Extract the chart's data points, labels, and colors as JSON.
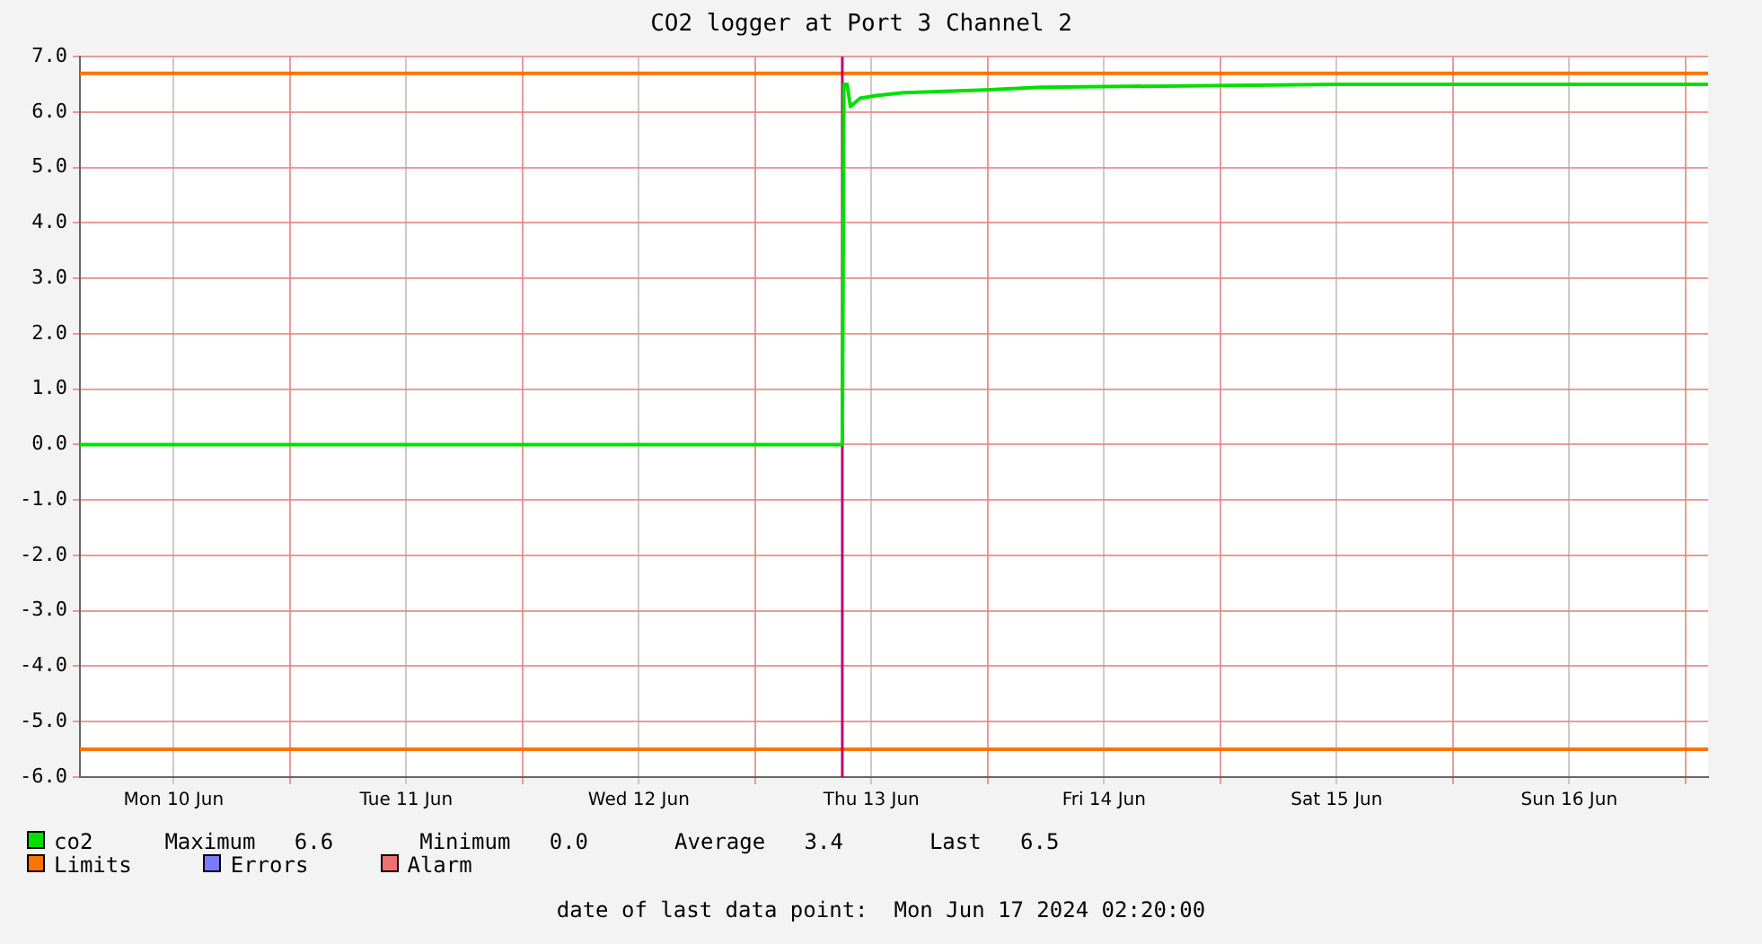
{
  "chart_data": {
    "type": "line",
    "title": "CO2 logger at Port 3 Channel 2",
    "xlim": [
      "2024-06-10T02:20",
      "2024-06-17T02:20"
    ],
    "xticks": [
      {
        "value": "2024-06-10T12:00",
        "label": "Mon 10 Jun"
      },
      {
        "value": "2024-06-11T00:00",
        "label": null
      },
      {
        "value": "2024-06-11T12:00",
        "label": "Tue 11 Jun"
      },
      {
        "value": "2024-06-12T00:00",
        "label": null
      },
      {
        "value": "2024-06-12T12:00",
        "label": "Wed 12 Jun"
      },
      {
        "value": "2024-06-13T00:00",
        "label": null
      },
      {
        "value": "2024-06-13T12:00",
        "label": "Thu 13 Jun"
      },
      {
        "value": "2024-06-14T00:00",
        "label": null
      },
      {
        "value": "2024-06-14T12:00",
        "label": "Fri 14 Jun"
      },
      {
        "value": "2024-06-15T00:00",
        "label": null
      },
      {
        "value": "2024-06-15T12:00",
        "label": "Sat 15 Jun"
      },
      {
        "value": "2024-06-16T00:00",
        "label": null
      },
      {
        "value": "2024-06-16T12:00",
        "label": "Sun 16 Jun"
      },
      {
        "value": "2024-06-17T00:00",
        "label": null
      }
    ],
    "ylim": [
      -6,
      7
    ],
    "yticks": [
      {
        "value": -6,
        "label": "-6.0"
      },
      {
        "value": -5,
        "label": "-5.0"
      },
      {
        "value": -4,
        "label": "-4.0"
      },
      {
        "value": -3,
        "label": "-3.0"
      },
      {
        "value": -2,
        "label": "-2.0"
      },
      {
        "value": -1,
        "label": "-1.0"
      },
      {
        "value": 0,
        "label": "0.0"
      },
      {
        "value": 1,
        "label": "1.0"
      },
      {
        "value": 2,
        "label": "2.0"
      },
      {
        "value": 3,
        "label": "3.0"
      },
      {
        "value": 4,
        "label": "4.0"
      },
      {
        "value": 5,
        "label": "5.0"
      },
      {
        "value": 6,
        "label": "6.0"
      },
      {
        "value": 7,
        "label": "7.0"
      }
    ],
    "grid": true,
    "legend": "bottom left",
    "marker": "none",
    "line_style": "solid",
    "series": [
      {
        "name": "co2",
        "color": "#00e000",
        "x": [
          "2024-06-10T02:20",
          "2024-06-13T09:00",
          "2024-06-13T09:10",
          "2024-06-13T09:30",
          "2024-06-13T09:50",
          "2024-06-13T10:50",
          "2024-06-13T12:30",
          "2024-06-13T15:20",
          "2024-06-13T23:40",
          "2024-06-14T05:30",
          "2024-06-15T12:10",
          "2024-06-17T02:20"
        ],
        "values": [
          0,
          0,
          6.5,
          6.5,
          6.1,
          6.25,
          6.3,
          6.35,
          6.4,
          6.45,
          6.5,
          6.5
        ]
      },
      {
        "name": "Errors",
        "color": "#7a7aff"
      },
      {
        "name": "Alarm",
        "color": "#f07070"
      }
    ],
    "ref_lines": [
      {
        "axis": "y",
        "value": 6.7,
        "label": "Limits",
        "color": "#ff7300"
      },
      {
        "axis": "y",
        "value": -5.5,
        "color": "#ff7300"
      },
      {
        "axis": "x",
        "value": "2024-06-13T09:00",
        "color": "#c0006b"
      }
    ],
    "annotations": [
      "Maximum   6.6",
      "Minimum   0.0",
      "Average   3.4",
      "Last   6.5",
      "date of last data point:  Mon Jun 17 2024 02:20:00"
    ]
  }
}
